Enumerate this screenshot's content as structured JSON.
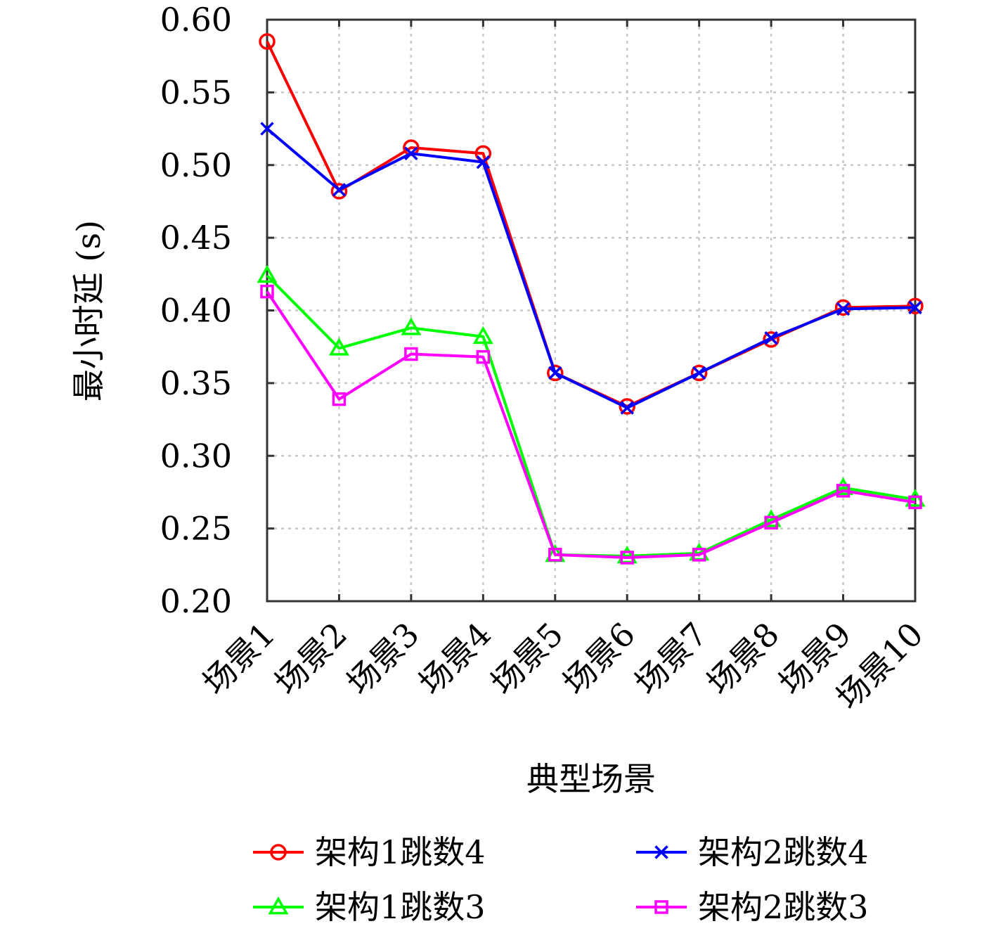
{
  "chart_data": {
    "type": "line",
    "title": "",
    "xlabel": "典型场景",
    "ylabel": "最小时延 (s)",
    "ylim": [
      0.2,
      0.6
    ],
    "yticks": [
      "0.20",
      "0.25",
      "0.30",
      "0.35",
      "0.40",
      "0.45",
      "0.50",
      "0.55",
      "0.60"
    ],
    "categories": [
      "场景1",
      "场景2",
      "场景3",
      "场景4",
      "场景5",
      "场景6",
      "场景7",
      "场景8",
      "场景9",
      "场景10"
    ],
    "grid": true,
    "legend_position": "bottom",
    "series": [
      {
        "name": "架构1跳数4",
        "color": "#ff0000",
        "marker": "circle",
        "values": [
          0.585,
          0.482,
          0.512,
          0.508,
          0.357,
          0.334,
          0.357,
          0.38,
          0.402,
          0.403
        ]
      },
      {
        "name": "架构2跳数4",
        "color": "#0000ff",
        "marker": "x",
        "values": [
          0.525,
          0.483,
          0.508,
          0.502,
          0.357,
          0.333,
          0.357,
          0.381,
          0.401,
          0.402
        ]
      },
      {
        "name": "架构1跳数3",
        "color": "#00ff00",
        "marker": "triangle",
        "values": [
          0.424,
          0.374,
          0.388,
          0.382,
          0.232,
          0.231,
          0.233,
          0.256,
          0.278,
          0.27
        ]
      },
      {
        "name": "架构2跳数3",
        "color": "#ff00ff",
        "marker": "square",
        "values": [
          0.413,
          0.339,
          0.37,
          0.368,
          0.232,
          0.23,
          0.232,
          0.254,
          0.276,
          0.268
        ]
      }
    ]
  }
}
